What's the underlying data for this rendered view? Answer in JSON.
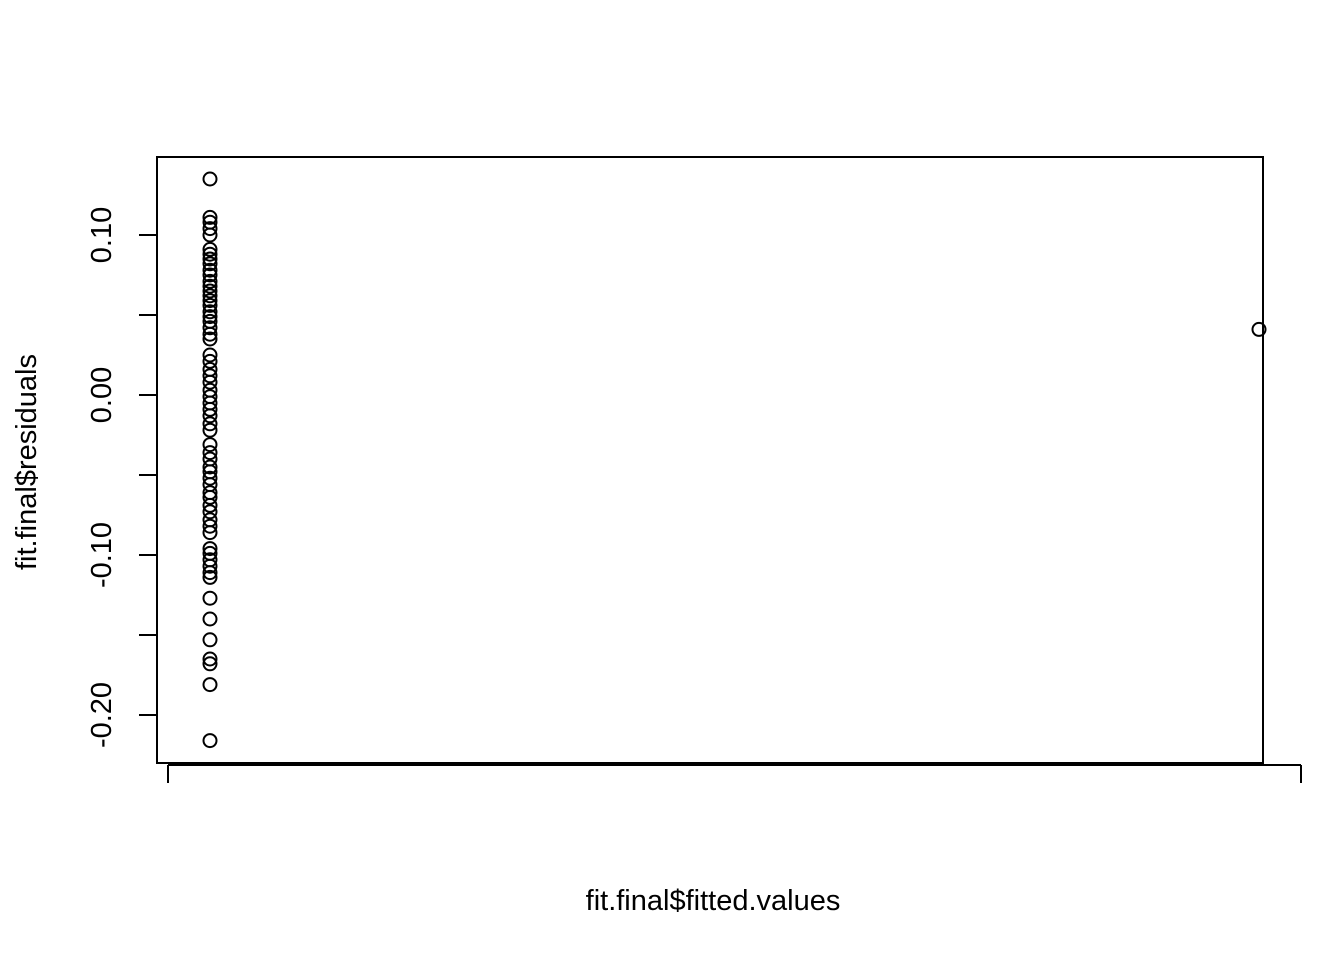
{
  "chart_data": {
    "type": "scatter",
    "title": "",
    "xlabel": "fit.final$fitted.values",
    "ylabel": "fit.final$residuals",
    "ylim": [
      -0.23,
      0.148
    ],
    "yticks": [
      -0.2,
      -0.15,
      -0.1,
      -0.05,
      0.0,
      0.05,
      0.1
    ],
    "ytick_labels": [
      "-0.20",
      "",
      "-0.10",
      "",
      "0.00",
      "",
      "0.10"
    ],
    "x_tick_labels": [
      "",
      ""
    ],
    "grid": false,
    "legend": "none",
    "marker": "open-circle",
    "color": "#000000",
    "points": {
      "x_cluster_value": "low",
      "cluster_y": [
        0.135,
        0.111,
        0.108,
        0.104,
        0.1,
        0.091,
        0.088,
        0.085,
        0.082,
        0.078,
        0.075,
        0.071,
        0.068,
        0.065,
        0.062,
        0.059,
        0.056,
        0.052,
        0.049,
        0.046,
        0.042,
        0.038,
        0.035,
        0.025,
        0.021,
        0.016,
        0.012,
        0.008,
        0.003,
        -0.001,
        -0.005,
        -0.009,
        -0.013,
        -0.018,
        -0.022,
        -0.031,
        -0.036,
        -0.04,
        -0.045,
        -0.048,
        -0.052,
        -0.056,
        -0.061,
        -0.064,
        -0.069,
        -0.073,
        -0.078,
        -0.082,
        -0.086,
        -0.096,
        -0.099,
        -0.103,
        -0.107,
        -0.111,
        -0.114,
        -0.127,
        -0.14,
        -0.153,
        -0.165,
        -0.168,
        -0.181,
        -0.216
      ],
      "outlier_y": 0.041
    }
  }
}
